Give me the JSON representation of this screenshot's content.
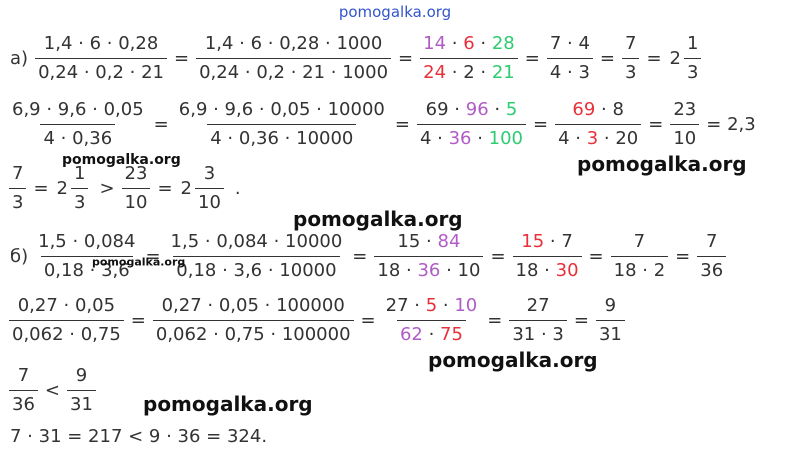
{
  "watermarks": [
    "pomogalka.org",
    "pomogalka.org",
    "pomogalka.org",
    "pomogalka.org",
    "pomogalka.org",
    "pomogalka.org",
    "pomogalka.org"
  ],
  "lines": [
    [
      {
        "text": "а)"
      },
      {
        "num": [
          {
            "text": "1,4 · 6 · 0,28"
          }
        ],
        "den": [
          {
            "text": "0,24 · 0,2 · 21"
          }
        ]
      },
      {
        "text": "="
      },
      {
        "num": [
          {
            "text": "1,4 · 6 · 0,28 · 1000"
          }
        ],
        "den": [
          {
            "text": "0,24 · 0,2 · 21 · 1000"
          }
        ]
      },
      {
        "text": "="
      },
      {
        "num": [
          {
            "text": "14",
            "color": "#b05cc6"
          },
          {
            "text": " · "
          },
          {
            "text": "6",
            "color": "#e8303a"
          },
          {
            "text": " · "
          },
          {
            "text": "28",
            "color": "#2ecc71"
          }
        ],
        "den": [
          {
            "text": "24",
            "color": "#e8303a"
          },
          {
            "text": " · 2 · "
          },
          {
            "text": "21",
            "color": "#2ecc71"
          }
        ]
      },
      {
        "text": "="
      },
      {
        "num": [
          {
            "text": "7 · 4"
          }
        ],
        "den": [
          {
            "text": "4 · 3"
          }
        ]
      },
      {
        "text": "="
      },
      {
        "num": [
          {
            "text": "7"
          }
        ],
        "den": [
          {
            "text": "3"
          }
        ]
      },
      {
        "text": "="
      },
      {
        "whole": "2",
        "num": [
          {
            "text": "1"
          }
        ],
        "den": [
          {
            "text": "3"
          }
        ]
      }
    ],
    [
      {
        "num": [
          {
            "text": "6,9 · 9,6 · 0,05"
          }
        ],
        "den": [
          {
            "text": "4 · 0,36"
          }
        ]
      },
      {
        "text": "="
      },
      {
        "num": [
          {
            "text": "6,9 · 9,6 · 0,05 · 10000"
          }
        ],
        "den": [
          {
            "text": "4 · 0,36 · 10000"
          }
        ]
      },
      {
        "text": "="
      },
      {
        "num": [
          {
            "text": "69 · "
          },
          {
            "text": "96",
            "color": "#b05cc6"
          },
          {
            "text": " · "
          },
          {
            "text": "5",
            "color": "#2ecc71"
          }
        ],
        "den": [
          {
            "text": "4 · "
          },
          {
            "text": "36",
            "color": "#b05cc6"
          },
          {
            "text": " · "
          },
          {
            "text": "100",
            "color": "#2ecc71"
          }
        ]
      },
      {
        "text": "="
      },
      {
        "num": [
          {
            "text": "69",
            "color": "#e8303a"
          },
          {
            "text": " · 8"
          }
        ],
        "den": [
          {
            "text": "4 · "
          },
          {
            "text": "3",
            "color": "#e8303a"
          },
          {
            "text": " · 20"
          }
        ]
      },
      {
        "text": "="
      },
      {
        "num": [
          {
            "text": "23"
          }
        ],
        "den": [
          {
            "text": "10"
          }
        ]
      },
      {
        "text": "= 2,3"
      }
    ],
    [
      {
        "num": [
          {
            "text": "7"
          }
        ],
        "den": [
          {
            "text": "3"
          }
        ]
      },
      {
        "text": "="
      },
      {
        "whole": "2",
        "num": [
          {
            "text": "1"
          }
        ],
        "den": [
          {
            "text": "3"
          }
        ]
      },
      {
        "text": ">"
      },
      {
        "num": [
          {
            "text": "23"
          }
        ],
        "den": [
          {
            "text": "10"
          }
        ]
      },
      {
        "text": "="
      },
      {
        "whole": "2",
        "num": [
          {
            "text": "3"
          }
        ],
        "den": [
          {
            "text": "10"
          }
        ]
      },
      {
        "text": "."
      }
    ],
    [
      {
        "text": "б)"
      },
      {
        "num": [
          {
            "text": "1,5 · 0,084"
          }
        ],
        "den": [
          {
            "text": "0,18 · 3,6"
          }
        ]
      },
      {
        "text": "="
      },
      {
        "num": [
          {
            "text": "1,5 · 0,084 · 10000"
          }
        ],
        "den": [
          {
            "text": "0,18 · 3,6 · 10000"
          }
        ]
      },
      {
        "text": "="
      },
      {
        "num": [
          {
            "text": "15 · "
          },
          {
            "text": "84",
            "color": "#b05cc6"
          }
        ],
        "den": [
          {
            "text": "18 · "
          },
          {
            "text": "36",
            "color": "#b05cc6"
          },
          {
            "text": " · 10"
          }
        ]
      },
      {
        "text": "="
      },
      {
        "num": [
          {
            "text": "15",
            "color": "#e8303a"
          },
          {
            "text": " · 7"
          }
        ],
        "den": [
          {
            "text": "18 · "
          },
          {
            "text": "30",
            "color": "#e8303a"
          }
        ]
      },
      {
        "text": "="
      },
      {
        "num": [
          {
            "text": "7"
          }
        ],
        "den": [
          {
            "text": "18 · 2"
          }
        ]
      },
      {
        "text": "="
      },
      {
        "num": [
          {
            "text": "7"
          }
        ],
        "den": [
          {
            "text": "36"
          }
        ]
      }
    ],
    [
      {
        "num": [
          {
            "text": "0,27 · 0,05"
          }
        ],
        "den": [
          {
            "text": "0,062 · 0,75"
          }
        ]
      },
      {
        "text": "="
      },
      {
        "num": [
          {
            "text": "0,27 · 0,05 · 100000"
          }
        ],
        "den": [
          {
            "text": "0,062 · 0,75 · 100000"
          }
        ]
      },
      {
        "text": "="
      },
      {
        "num": [
          {
            "text": "27 · "
          },
          {
            "text": "5",
            "color": "#e8303a"
          },
          {
            "text": " · "
          },
          {
            "text": "10",
            "color": "#b05cc6"
          }
        ],
        "den": [
          {
            "text": "62",
            "color": "#b05cc6"
          },
          {
            "text": " · "
          },
          {
            "text": "75",
            "color": "#e8303a"
          }
        ]
      },
      {
        "text": "="
      },
      {
        "num": [
          {
            "text": "27"
          }
        ],
        "den": [
          {
            "text": "31 · 3"
          }
        ]
      },
      {
        "text": "="
      },
      {
        "num": [
          {
            "text": "9"
          }
        ],
        "den": [
          {
            "text": "31"
          }
        ]
      }
    ],
    [
      {
        "num": [
          {
            "text": "7"
          }
        ],
        "den": [
          {
            "text": "36"
          }
        ]
      },
      {
        "text": "<"
      },
      {
        "num": [
          {
            "text": "9"
          }
        ],
        "den": [
          {
            "text": "31"
          }
        ]
      }
    ],
    [
      {
        "text": "7 · 31 = 217 < 9 · 36 = 324."
      }
    ]
  ]
}
